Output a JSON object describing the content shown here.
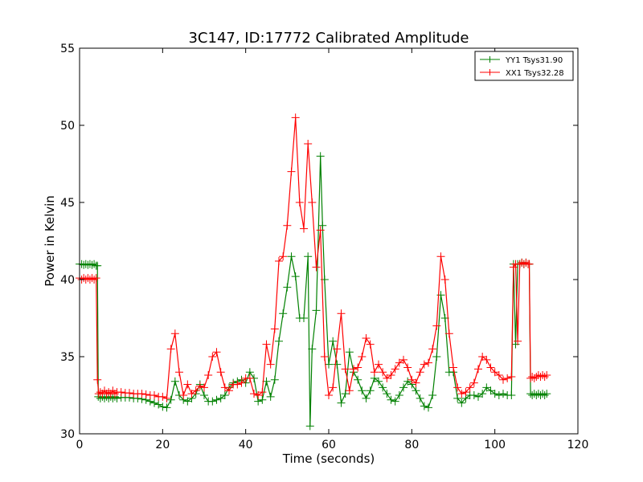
{
  "chart_data": {
    "type": "line",
    "title": "3C147, ID:17772 Calibrated Amplitude",
    "xlabel": "Time (seconds)",
    "ylabel": "Power in Kelvin",
    "xlim": [
      0,
      120
    ],
    "ylim": [
      30,
      55
    ],
    "xticks": [
      0,
      20,
      40,
      60,
      80,
      100,
      120
    ],
    "yticks": [
      30,
      35,
      40,
      45,
      50,
      55
    ],
    "grid": false,
    "legend_position": "top-right",
    "marker": "+",
    "series": [
      {
        "name": "YY1 Tsys31.90",
        "color": "#008000",
        "points": [
          [
            0.0,
            41.0
          ],
          [
            0.5,
            41.0
          ],
          [
            1.0,
            40.95
          ],
          [
            1.5,
            41.0
          ],
          [
            2.0,
            40.95
          ],
          [
            2.5,
            41.0
          ],
          [
            3.0,
            40.95
          ],
          [
            3.5,
            41.0
          ],
          [
            4.0,
            40.9
          ],
          [
            4.3,
            40.9
          ],
          [
            4.5,
            32.4
          ],
          [
            5.0,
            32.3
          ],
          [
            5.5,
            32.4
          ],
          [
            6.0,
            32.3
          ],
          [
            6.5,
            32.4
          ],
          [
            7.0,
            32.3
          ],
          [
            7.5,
            32.4
          ],
          [
            8.0,
            32.3
          ],
          [
            8.5,
            32.4
          ],
          [
            9.0,
            32.3
          ],
          [
            10.0,
            32.35
          ],
          [
            11.0,
            32.35
          ],
          [
            12.0,
            32.35
          ],
          [
            13.0,
            32.3
          ],
          [
            14.0,
            32.3
          ],
          [
            15.0,
            32.25
          ],
          [
            16.0,
            32.2
          ],
          [
            17.0,
            32.1
          ],
          [
            18.0,
            32.0
          ],
          [
            19.0,
            31.9
          ],
          [
            20.0,
            31.75
          ],
          [
            21.0,
            31.7
          ],
          [
            22.0,
            32.2
          ],
          [
            23.0,
            33.4
          ],
          [
            24.0,
            32.5
          ],
          [
            25.0,
            32.2
          ],
          [
            26.0,
            32.1
          ],
          [
            27.0,
            32.3
          ],
          [
            28.0,
            32.6
          ],
          [
            29.0,
            33.2
          ],
          [
            30.0,
            32.5
          ],
          [
            31.0,
            32.1
          ],
          [
            32.0,
            32.1
          ],
          [
            33.0,
            32.2
          ],
          [
            34.0,
            32.3
          ],
          [
            35.0,
            32.5
          ],
          [
            36.0,
            33.0
          ],
          [
            37.0,
            33.3
          ],
          [
            38.0,
            33.4
          ],
          [
            39.0,
            33.5
          ],
          [
            40.0,
            33.3
          ],
          [
            41.0,
            34.0
          ],
          [
            42.0,
            33.6
          ],
          [
            43.0,
            32.1
          ],
          [
            44.0,
            32.2
          ],
          [
            45.0,
            33.4
          ],
          [
            46.0,
            32.4
          ],
          [
            47.0,
            33.5
          ],
          [
            48.0,
            36.0
          ],
          [
            49.0,
            37.8
          ],
          [
            50.0,
            39.5
          ],
          [
            51.0,
            41.5
          ],
          [
            52.0,
            40.2
          ],
          [
            53.0,
            37.5
          ],
          [
            54.0,
            37.5
          ],
          [
            55.0,
            41.5
          ],
          [
            55.5,
            30.5
          ],
          [
            56.0,
            35.5
          ],
          [
            57.0,
            38.0
          ],
          [
            58.0,
            48.0
          ],
          [
            58.5,
            43.5
          ],
          [
            59.0,
            40.0
          ],
          [
            60.0,
            34.5
          ],
          [
            61.0,
            36.0
          ],
          [
            62.0,
            34.5
          ],
          [
            63.0,
            32.0
          ],
          [
            64.0,
            32.6
          ],
          [
            65.0,
            35.3
          ],
          [
            66.0,
            34.0
          ],
          [
            67.0,
            33.5
          ],
          [
            68.0,
            32.8
          ],
          [
            69.0,
            32.3
          ],
          [
            70.0,
            32.8
          ],
          [
            71.0,
            33.6
          ],
          [
            72.0,
            33.4
          ],
          [
            73.0,
            33.0
          ],
          [
            74.0,
            32.6
          ],
          [
            75.0,
            32.2
          ],
          [
            76.0,
            32.1
          ],
          [
            77.0,
            32.5
          ],
          [
            78.0,
            33.0
          ],
          [
            79.0,
            33.4
          ],
          [
            80.0,
            33.2
          ],
          [
            81.0,
            32.8
          ],
          [
            82.0,
            32.3
          ],
          [
            83.0,
            31.8
          ],
          [
            84.0,
            31.7
          ],
          [
            85.0,
            32.5
          ],
          [
            86.0,
            35.0
          ],
          [
            87.0,
            39.0
          ],
          [
            88.0,
            37.5
          ],
          [
            89.0,
            34.0
          ],
          [
            90.0,
            34.0
          ],
          [
            91.0,
            32.3
          ],
          [
            92.0,
            32.0
          ],
          [
            93.0,
            32.3
          ],
          [
            94.0,
            32.5
          ],
          [
            95.0,
            32.5
          ],
          [
            96.0,
            32.4
          ],
          [
            97.0,
            32.6
          ],
          [
            98.0,
            33.0
          ],
          [
            99.0,
            32.8
          ],
          [
            100.0,
            32.6
          ],
          [
            101.0,
            32.5
          ],
          [
            102.0,
            32.6
          ],
          [
            103.0,
            32.5
          ],
          [
            104.0,
            32.5
          ],
          [
            104.5,
            41.0
          ],
          [
            105.0,
            35.8
          ],
          [
            105.5,
            41.0
          ],
          [
            106.0,
            41.0
          ],
          [
            106.5,
            41.1
          ],
          [
            107.0,
            41.0
          ],
          [
            107.5,
            41.1
          ],
          [
            108.0,
            41.0
          ],
          [
            108.3,
            41.0
          ],
          [
            108.6,
            32.6
          ],
          [
            109.0,
            32.5
          ],
          [
            109.5,
            32.6
          ],
          [
            110.0,
            32.5
          ],
          [
            110.5,
            32.6
          ],
          [
            111.0,
            32.5
          ],
          [
            111.5,
            32.6
          ],
          [
            112.0,
            32.5
          ],
          [
            112.5,
            32.6
          ]
        ]
      },
      {
        "name": "XX1 Tsys32.28",
        "color": "#ff0000",
        "points": [
          [
            0.0,
            40.1
          ],
          [
            0.5,
            40.0
          ],
          [
            1.0,
            40.1
          ],
          [
            1.5,
            40.0
          ],
          [
            2.0,
            40.1
          ],
          [
            2.5,
            40.0
          ],
          [
            3.0,
            40.1
          ],
          [
            3.5,
            40.0
          ],
          [
            4.0,
            40.1
          ],
          [
            4.3,
            33.5
          ],
          [
            4.6,
            32.6
          ],
          [
            5.0,
            32.7
          ],
          [
            5.5,
            32.6
          ],
          [
            6.0,
            32.8
          ],
          [
            6.5,
            32.6
          ],
          [
            7.0,
            32.7
          ],
          [
            7.5,
            32.6
          ],
          [
            8.0,
            32.8
          ],
          [
            8.5,
            32.6
          ],
          [
            9.0,
            32.7
          ],
          [
            10.0,
            32.7
          ],
          [
            11.0,
            32.65
          ],
          [
            12.0,
            32.65
          ],
          [
            13.0,
            32.6
          ],
          [
            14.0,
            32.6
          ],
          [
            15.0,
            32.6
          ],
          [
            16.0,
            32.55
          ],
          [
            17.0,
            32.5
          ],
          [
            18.0,
            32.5
          ],
          [
            19.0,
            32.4
          ],
          [
            20.0,
            32.4
          ],
          [
            21.0,
            32.3
          ],
          [
            22.0,
            35.5
          ],
          [
            23.0,
            36.5
          ],
          [
            24.0,
            34.0
          ],
          [
            25.0,
            32.5
          ],
          [
            26.0,
            33.2
          ],
          [
            27.0,
            32.6
          ],
          [
            28.0,
            32.8
          ],
          [
            29.0,
            33.1
          ],
          [
            30.0,
            33.0
          ],
          [
            31.0,
            33.8
          ],
          [
            32.0,
            35.0
          ],
          [
            33.0,
            35.3
          ],
          [
            34.0,
            34.0
          ],
          [
            35.0,
            33.0
          ],
          [
            36.0,
            32.8
          ],
          [
            37.0,
            33.2
          ],
          [
            38.0,
            33.2
          ],
          [
            39.0,
            33.3
          ],
          [
            40.0,
            33.6
          ],
          [
            41.0,
            33.6
          ],
          [
            42.0,
            32.6
          ],
          [
            43.0,
            32.5
          ],
          [
            44.0,
            32.7
          ],
          [
            45.0,
            35.8
          ],
          [
            46.0,
            34.5
          ],
          [
            47.0,
            36.8
          ],
          [
            48.0,
            41.2
          ],
          [
            49.0,
            41.5
          ],
          [
            50.0,
            43.5
          ],
          [
            51.0,
            47.0
          ],
          [
            52.0,
            50.5
          ],
          [
            53.0,
            45.0
          ],
          [
            54.0,
            43.3
          ],
          [
            55.0,
            48.8
          ],
          [
            56.0,
            45.0
          ],
          [
            57.0,
            40.8
          ],
          [
            58.0,
            43.2
          ],
          [
            59.0,
            35.0
          ],
          [
            60.0,
            32.5
          ],
          [
            61.0,
            33.0
          ],
          [
            62.0,
            35.5
          ],
          [
            63.0,
            37.8
          ],
          [
            64.0,
            34.2
          ],
          [
            65.0,
            32.8
          ],
          [
            66.0,
            34.2
          ],
          [
            67.0,
            34.3
          ],
          [
            68.0,
            35.0
          ],
          [
            69.0,
            36.2
          ],
          [
            70.0,
            35.8
          ],
          [
            71.0,
            34.0
          ],
          [
            72.0,
            34.5
          ],
          [
            73.0,
            34.0
          ],
          [
            74.0,
            33.6
          ],
          [
            75.0,
            33.8
          ],
          [
            76.0,
            34.2
          ],
          [
            77.0,
            34.6
          ],
          [
            78.0,
            34.8
          ],
          [
            79.0,
            34.3
          ],
          [
            80.0,
            33.5
          ],
          [
            81.0,
            33.3
          ],
          [
            82.0,
            34.0
          ],
          [
            83.0,
            34.5
          ],
          [
            84.0,
            34.6
          ],
          [
            85.0,
            35.5
          ],
          [
            86.0,
            37.0
          ],
          [
            87.0,
            41.5
          ],
          [
            88.0,
            40.0
          ],
          [
            89.0,
            36.5
          ],
          [
            90.0,
            34.3
          ],
          [
            91.0,
            33.0
          ],
          [
            92.0,
            32.6
          ],
          [
            93.0,
            32.7
          ],
          [
            94.0,
            33.0
          ],
          [
            95.0,
            33.3
          ],
          [
            96.0,
            34.2
          ],
          [
            97.0,
            35.0
          ],
          [
            98.0,
            34.8
          ],
          [
            99.0,
            34.3
          ],
          [
            100.0,
            34.0
          ],
          [
            101.0,
            33.8
          ],
          [
            102.0,
            33.5
          ],
          [
            103.0,
            33.6
          ],
          [
            104.0,
            33.7
          ],
          [
            104.5,
            40.8
          ],
          [
            105.0,
            41.0
          ],
          [
            105.5,
            36.0
          ],
          [
            106.0,
            41.0
          ],
          [
            106.5,
            41.1
          ],
          [
            107.0,
            41.0
          ],
          [
            107.5,
            41.1
          ],
          [
            108.0,
            41.0
          ],
          [
            108.3,
            41.0
          ],
          [
            108.6,
            33.6
          ],
          [
            109.0,
            33.7
          ],
          [
            109.5,
            33.6
          ],
          [
            110.0,
            33.7
          ],
          [
            110.5,
            33.8
          ],
          [
            111.0,
            33.7
          ],
          [
            111.5,
            33.8
          ],
          [
            112.0,
            33.7
          ],
          [
            112.5,
            33.8
          ]
        ]
      }
    ]
  }
}
